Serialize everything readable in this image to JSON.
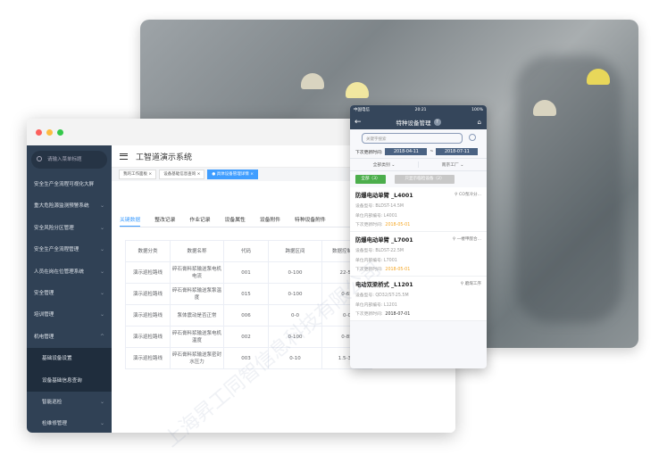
{
  "desktop": {
    "search_placeholder": "请输入菜单标题",
    "sidebar": [
      {
        "label": "安全生产全流程可视化大屏",
        "chevron": false
      },
      {
        "label": "重大危险源监测预警系统",
        "chevron": true
      },
      {
        "label": "安全风险分区管理",
        "chevron": true
      },
      {
        "label": "安全生产全流程管理",
        "chevron": true
      },
      {
        "label": "人员在岗在位管理系统",
        "chevron": true
      },
      {
        "label": "安全管理",
        "chevron": true
      },
      {
        "label": "培训管理",
        "chevron": true
      },
      {
        "label": "机电管理",
        "chevron": true,
        "expanded": true
      },
      {
        "label": "基础设备设置",
        "sub": true
      },
      {
        "label": "设备基础信息查询",
        "sub": true
      },
      {
        "label": "智能巡检",
        "chevron": true,
        "indent": true
      },
      {
        "label": "检维修管理",
        "chevron": true,
        "indent": true
      }
    ],
    "title": "工智道演示系统",
    "open_tabs": [
      {
        "label": "我的工作面板"
      },
      {
        "label": "设备基础信息查询"
      },
      {
        "label": "具体设备管理详情",
        "active": true
      }
    ],
    "content_tabs": [
      "关键数据",
      "整改记录",
      "作业记录",
      "设备属性",
      "设备附件",
      "特种设备附件"
    ],
    "table": {
      "headers": [
        "数据分类",
        "数据名称",
        "代码",
        "跨据区间",
        "数据控制区间"
      ],
      "rows": [
        [
          "演示巡检路线",
          "碎石膏料浆输送泵电机电流",
          "001",
          "0-100",
          "22-58"
        ],
        [
          "演示巡检路线",
          "碎石膏料浆输送泵泵温度",
          "015",
          "0-100",
          "0-65"
        ],
        [
          "演示巡检路线",
          "泵体震动是否正常",
          "006",
          "0-0",
          "0-0"
        ],
        [
          "演示巡检路线",
          "碎石膏料浆输送泵电机温度",
          "002",
          "0-100",
          "0-85"
        ],
        [
          "演示巡检路线",
          "碎石膏料浆输送泵密封水压力",
          "003",
          "0-10",
          "1.5-3.5"
        ]
      ]
    }
  },
  "mobile": {
    "status": {
      "carrier": "中国电信",
      "time": "20:21",
      "battery": "100%"
    },
    "title": "特种设备管理",
    "search_placeholder": "关键字搜索",
    "date_label": "下次更新时间:",
    "date_from": "2018-04-11",
    "date_sep": "~",
    "date_to": "2018-07-11",
    "filter_type": "全部类别",
    "filter_site": "南京工厂",
    "btn_all": "全部（3）",
    "btn_overdue": "只显示临检设备（2）",
    "cards": [
      {
        "name": "防爆电动单臂 _L4001",
        "loc": "CO泵冷分...",
        "model": "设备型号: BLDST-14.5M",
        "code": "单位内部编号: L4001",
        "next_label": "下次更新时间:",
        "next": "2018-05-01",
        "warn": true
      },
      {
        "name": "防爆电动单臂 _L7001",
        "loc": "一楼甲醛合...",
        "model": "设备型号: BLDST-22.5M",
        "code": "单位内部编号: L7001",
        "next_label": "下次更新时间:",
        "next": "2018-05-01",
        "warn": true
      },
      {
        "name": "电动双梁桥式 _L1201",
        "loc": "磨煤工序",
        "model": "设备型号: QD32/ST-25.5M",
        "code": "单位内部编号: L1201",
        "next_label": "下次更新时间:",
        "next": "2018-07-01",
        "warn": false
      }
    ]
  },
  "watermark": "上海昇工同智信息科技有限公司",
  "colors": {
    "sidebar": "#304155",
    "accent": "#409eff",
    "mobile_nav": "#35465b",
    "warn": "#f5a623",
    "green": "#4cae4c"
  }
}
